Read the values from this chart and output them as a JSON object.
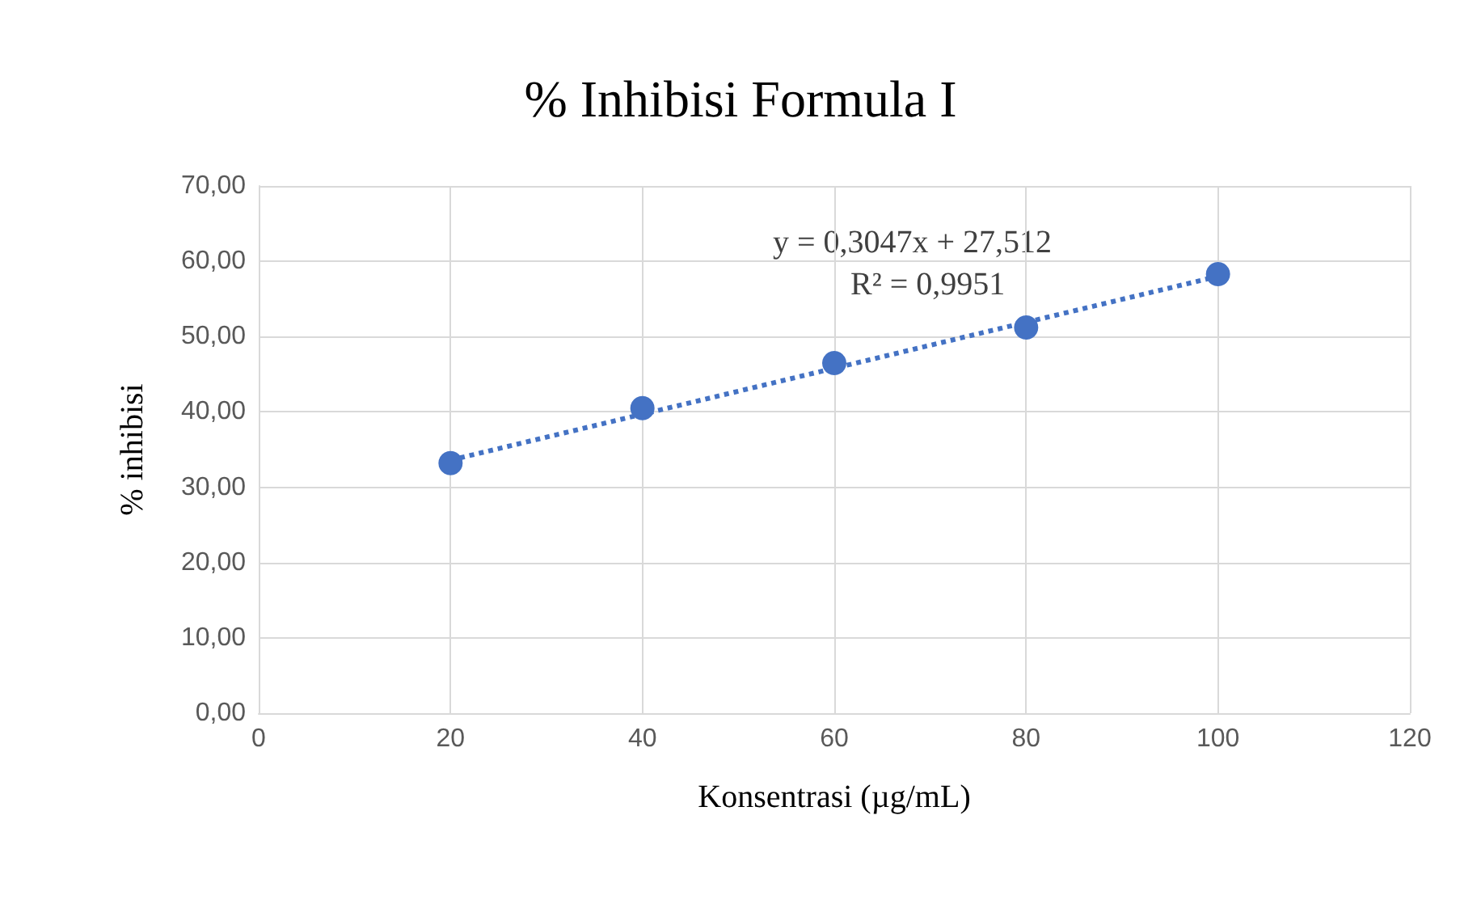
{
  "chart_data": {
    "type": "scatter",
    "title": "% Inhibisi Formula I",
    "xlabel": "Konsentrasi (µg/mL)",
    "ylabel": "% inhibisi",
    "x": [
      20,
      40,
      60,
      80,
      100
    ],
    "series": [
      {
        "color": "#4472c4",
        "values": [
          33.2,
          40.5,
          46.5,
          51.2,
          58.3
        ]
      },
      {
        "type": "line",
        "color": "#4472c4",
        "line_style": "dotted",
        "marker": "none",
        "x": [
          20,
          100
        ],
        "values": [
          33.6,
          58.0
        ]
      }
    ],
    "xlim": [
      0,
      120
    ],
    "xticks": [
      0,
      20,
      40,
      60,
      80,
      100,
      120
    ],
    "ylim": [
      0,
      70
    ],
    "yticks": [
      {
        "value": 0,
        "label": "0,00"
      },
      {
        "value": 10,
        "label": "10,00"
      },
      {
        "value": 20,
        "label": "20,00"
      },
      {
        "value": 30,
        "label": "30,00"
      },
      {
        "value": 40,
        "label": "40,00"
      },
      {
        "value": 50,
        "label": "50,00"
      },
      {
        "value": 60,
        "label": "60,00"
      },
      {
        "value": 70,
        "label": "70,00"
      }
    ],
    "grid": true,
    "marker": "circle",
    "annotations": [
      "y = 0,3047x + 27,512",
      "R² = 0,9951"
    ]
  }
}
